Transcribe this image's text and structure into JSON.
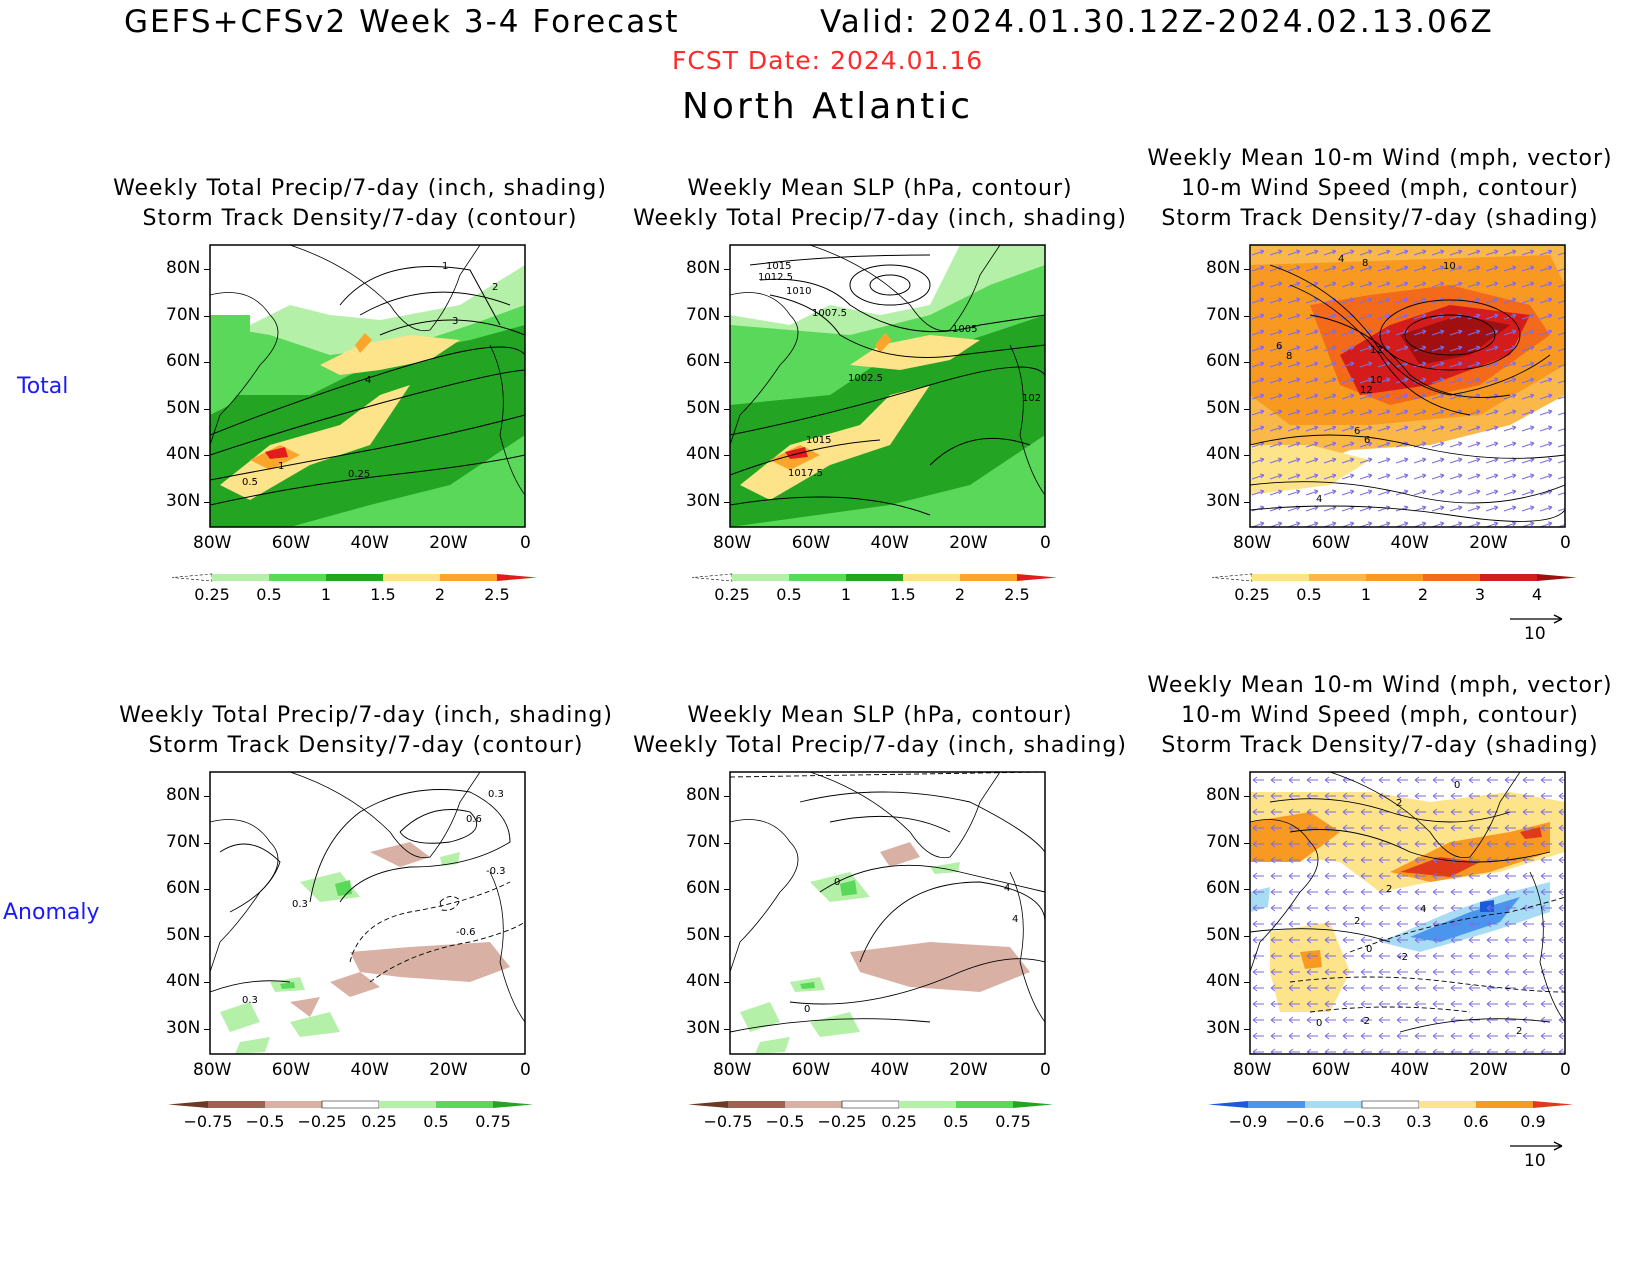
{
  "header": {
    "title": "GEFS+CFSv2 Week 3-4 Forecast",
    "valid": "Valid: 2024.01.30.12Z-2024.02.13.06Z",
    "fcst_date": "FCST Date: 2024.01.16",
    "region": "North Atlantic"
  },
  "row_labels": [
    "Total",
    "Anomaly"
  ],
  "axes": {
    "lat_ticks": [
      "80N",
      "70N",
      "60N",
      "50N",
      "40N",
      "30N"
    ],
    "lon_ticks": [
      "80W",
      "60W",
      "40W",
      "20W",
      "0"
    ]
  },
  "panel_titles": {
    "precip": [
      "Weekly Total Precip/7-day (inch, shading)",
      "Storm Track Density/7-day (contour)"
    ],
    "slp": [
      "Weekly Mean SLP (hPa, contour)",
      "Weekly Total Precip/7-day (inch, shading)"
    ],
    "wind": [
      "Weekly Mean 10-m Wind (mph, vector)",
      "10-m Wind Speed (mph, contour)",
      "Storm Track Density/7-day (shading)"
    ]
  },
  "colorbars": {
    "precip_total": {
      "labels": [
        "0.25",
        "0.5",
        "1",
        "1.5",
        "2",
        "2.5"
      ],
      "colors": [
        "#ffffff",
        "#b4f0a8",
        "#5ad85a",
        "#23a523",
        "#fde38a",
        "#fba52d",
        "#e01c1c"
      ]
    },
    "density_total": {
      "labels": [
        "0.25",
        "0.5",
        "1",
        "2",
        "3",
        "4"
      ],
      "colors": [
        "#ffffff",
        "#fde38a",
        "#fbb84a",
        "#f89a22",
        "#f26a1a",
        "#d41c1c",
        "#a01010"
      ]
    },
    "precip_anom": {
      "labels": [
        "-0.75",
        "-0.5",
        "-0.25",
        "0.25",
        "0.5",
        "0.75"
      ],
      "colors": [
        "#6b3a26",
        "#9a6450",
        "#d9b0a4",
        "#ffffff",
        "#b4f0a8",
        "#5ad85a",
        "#23a523"
      ]
    },
    "density_anom": {
      "labels": [
        "-0.9",
        "-0.6",
        "-0.3",
        "0.3",
        "0.6",
        "0.9"
      ],
      "colors": [
        "#1a5adc",
        "#4a96ee",
        "#a8dcf5",
        "#ffffff",
        "#fde38a",
        "#f89a22",
        "#e03a1a"
      ]
    }
  },
  "vector_ref": "10",
  "contour_labels": {
    "p1_total": [
      "1",
      "2",
      "3",
      "4",
      "1",
      "0.5",
      "0.25"
    ],
    "p2_total": [
      "1015",
      "1012.5",
      "1010",
      "1007.5",
      "1005",
      "1002.5",
      "102",
      "1015",
      "1017.5"
    ],
    "p3_total": [
      "4",
      "8",
      "10",
      "6",
      "8",
      "12",
      "10",
      "12",
      "6",
      "6",
      "4"
    ],
    "p1_anom": [
      "0.3",
      "0.6",
      "-0.3",
      "0.3",
      "-0.6",
      "0.3"
    ],
    "p2_anom": [
      "0",
      "4",
      "4",
      "0"
    ],
    "p3_anom": [
      "2",
      "0",
      "2",
      "4",
      "2",
      "0",
      "-2",
      "0",
      "-2",
      "2"
    ]
  },
  "colors": {
    "fcst": "#ff2a2a",
    "row_label": "#1a1aff"
  }
}
